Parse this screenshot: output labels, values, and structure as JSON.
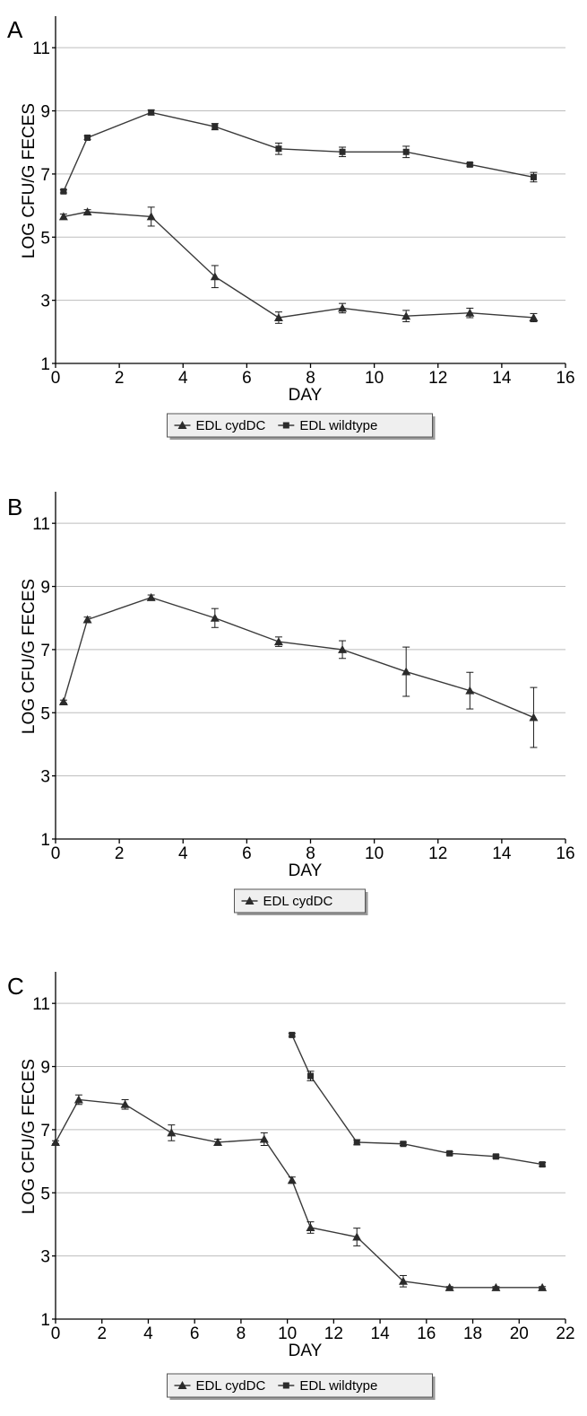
{
  "chart_data": [
    {
      "panel": "A",
      "type": "line",
      "xlabel": "DAY",
      "ylabel": "LOG CFU/G FECES",
      "xlim": [
        0,
        16
      ],
      "ylim": [
        1,
        12
      ],
      "x_ticks": [
        0,
        2,
        4,
        6,
        8,
        10,
        12,
        14,
        16
      ],
      "y_ticks": [
        1,
        3,
        5,
        7,
        9,
        11
      ],
      "grid": "horizontal",
      "legend_position": "bottom-center",
      "series": [
        {
          "name": "EDL cydDC",
          "marker": "triangle",
          "x": [
            0.25,
            1,
            3,
            5,
            7,
            9,
            11,
            13,
            15
          ],
          "y": [
            5.65,
            5.8,
            5.65,
            3.75,
            2.45,
            2.75,
            2.5,
            2.6,
            2.45
          ],
          "error": [
            0.08,
            0.07,
            0.3,
            0.35,
            0.18,
            0.15,
            0.18,
            0.15,
            0.13
          ]
        },
        {
          "name": "EDL wildtype",
          "marker": "square",
          "x": [
            0.25,
            1,
            3,
            5,
            7,
            9,
            11,
            13,
            15
          ],
          "y": [
            6.45,
            8.15,
            8.95,
            8.5,
            7.8,
            7.7,
            7.7,
            7.3,
            6.9
          ],
          "error": [
            0.05,
            0.06,
            0.08,
            0.1,
            0.18,
            0.15,
            0.18,
            0.05,
            0.15
          ]
        }
      ]
    },
    {
      "panel": "B",
      "type": "line",
      "xlabel": "DAY",
      "ylabel": "LOG CFU/G FECES",
      "xlim": [
        0,
        16
      ],
      "ylim": [
        1,
        12
      ],
      "x_ticks": [
        0,
        2,
        4,
        6,
        8,
        10,
        12,
        14,
        16
      ],
      "y_ticks": [
        1,
        3,
        5,
        7,
        9,
        11
      ],
      "grid": "horizontal",
      "legend_position": "bottom-center",
      "series": [
        {
          "name": "EDL cydDC",
          "marker": "triangle",
          "x": [
            0.25,
            1,
            3,
            5,
            7,
            9,
            11,
            13,
            15
          ],
          "y": [
            5.35,
            7.95,
            8.65,
            8.0,
            7.25,
            7.0,
            6.3,
            5.7,
            4.85
          ],
          "error": [
            0.05,
            0.08,
            0.08,
            0.3,
            0.15,
            0.28,
            0.78,
            0.58,
            0.95
          ]
        }
      ]
    },
    {
      "panel": "C",
      "type": "line",
      "xlabel": "DAY",
      "ylabel": "LOG CFU/G FECES",
      "xlim": [
        0,
        22
      ],
      "ylim": [
        1,
        12
      ],
      "x_ticks": [
        0,
        2,
        4,
        6,
        8,
        10,
        12,
        14,
        16,
        18,
        20,
        22
      ],
      "y_ticks": [
        1,
        3,
        5,
        7,
        9,
        11
      ],
      "grid": "horizontal",
      "legend_position": "bottom-center",
      "series": [
        {
          "name": "EDL cydDC",
          "marker": "triangle",
          "x": [
            0,
            1,
            3,
            5,
            7,
            9,
            10.2,
            11,
            13,
            15,
            17,
            19,
            21
          ],
          "y": [
            6.6,
            7.95,
            7.8,
            6.9,
            6.6,
            6.7,
            5.4,
            3.9,
            3.6,
            2.2,
            2.0,
            2.0,
            2.0
          ],
          "error": [
            0.05,
            0.15,
            0.15,
            0.25,
            0.1,
            0.2,
            0.1,
            0.18,
            0.28,
            0.18,
            0.03,
            0.03,
            0.03
          ]
        },
        {
          "name": "EDL wildtype",
          "marker": "square",
          "x": [
            10.2,
            11,
            13,
            15,
            17,
            19,
            21
          ],
          "y": [
            10.0,
            8.7,
            6.6,
            6.55,
            6.25,
            6.15,
            5.9
          ],
          "error": [
            0.05,
            0.15,
            0.08,
            0.05,
            0.05,
            0.05,
            0.06
          ]
        }
      ]
    }
  ]
}
